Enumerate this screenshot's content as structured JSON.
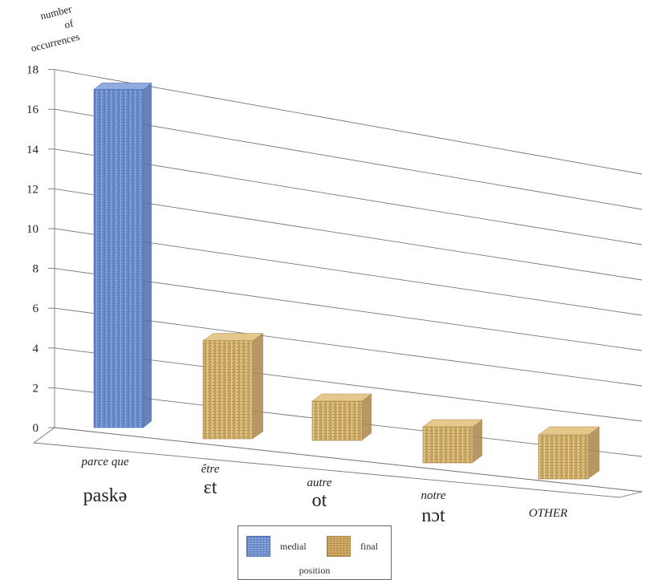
{
  "chart_data": {
    "type": "bar",
    "ylabel": "number of occurrences",
    "ylabel_lines": [
      "number",
      "of",
      "occurrences"
    ],
    "ylim": [
      0,
      18
    ],
    "yticks": [
      0,
      2,
      4,
      6,
      8,
      10,
      12,
      14,
      16,
      18
    ],
    "grid": true,
    "categories": [
      "parce que",
      "être",
      "autre",
      "notre",
      "OTHER"
    ],
    "category_ipa": [
      "paskə",
      "ɛt",
      "ot",
      "nɔt",
      ""
    ],
    "values": [
      17,
      5,
      2,
      2,
      2.5
    ],
    "bar_series": [
      "medial",
      "final",
      "final",
      "final",
      "final"
    ],
    "legend": {
      "title": "position",
      "placement": "bottom",
      "entries": [
        {
          "name": "medial",
          "color": "#6c8fd0"
        },
        {
          "name": "final",
          "color": "#d4b06a"
        }
      ]
    }
  }
}
